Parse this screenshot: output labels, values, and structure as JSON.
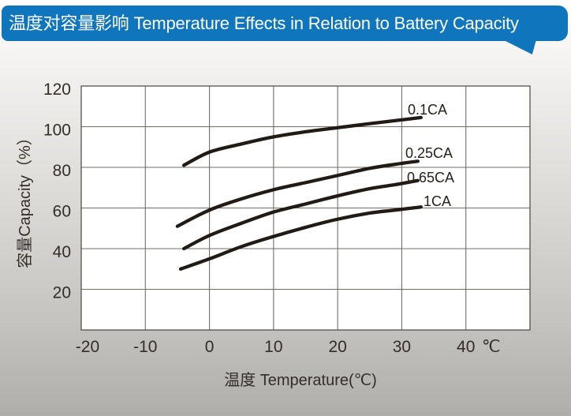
{
  "header": {
    "title": "温度对容量影响 Temperature Effects in Relation to Battery Capacity",
    "bg_color": "#0f76bd",
    "text_color": "#ffffff"
  },
  "chart_data": {
    "type": "line",
    "title": "温度对容量影响 Temperature Effects in Relation to Battery Capacity",
    "xlabel": "温度  Temperature(℃)",
    "ylabel": "容量Capacity（%）",
    "x_unit": "℃",
    "xlim": [
      -20,
      50
    ],
    "ylim": [
      0,
      120
    ],
    "x_ticks": [
      -20,
      -10,
      0,
      10,
      20,
      30,
      40
    ],
    "x_tick_labels": [
      "-20",
      "-10",
      "0",
      "10",
      "20",
      "30",
      "40"
    ],
    "y_ticks": [
      20,
      40,
      60,
      80,
      100,
      120
    ],
    "y_tick_labels": [
      "20",
      "40",
      "60",
      "80",
      "100",
      "120"
    ],
    "grid": true,
    "legend_position": "inline labels at line ends",
    "plot_bg": "#ffffff",
    "grid_color": "#736d67",
    "border_color": "#57524d",
    "line_color": "#221a14",
    "series": [
      {
        "name": "0.1CA",
        "points": [
          [
            -4,
            81
          ],
          [
            0,
            87.5
          ],
          [
            5,
            91.5
          ],
          [
            10,
            95
          ],
          [
            15,
            97.5
          ],
          [
            20,
            99.5
          ],
          [
            25,
            101.5
          ],
          [
            29,
            103
          ],
          [
            33,
            104.5
          ]
        ]
      },
      {
        "name": "0.25CA",
        "points": [
          [
            -5,
            51
          ],
          [
            0,
            59
          ],
          [
            5,
            64.5
          ],
          [
            10,
            69
          ],
          [
            15,
            72.5
          ],
          [
            20,
            76
          ],
          [
            25,
            79.5
          ],
          [
            29,
            81.5
          ],
          [
            32.5,
            83
          ]
        ]
      },
      {
        "name": "0.65CA",
        "points": [
          [
            -4,
            40
          ],
          [
            0,
            46.5
          ],
          [
            5,
            52.5
          ],
          [
            10,
            58
          ],
          [
            15,
            62
          ],
          [
            20,
            66
          ],
          [
            25,
            69.5
          ],
          [
            29,
            71.5
          ],
          [
            32.5,
            73.5
          ]
        ]
      },
      {
        "name": "1CA",
        "points": [
          [
            -4.5,
            30
          ],
          [
            0,
            35
          ],
          [
            5,
            41
          ],
          [
            10,
            46
          ],
          [
            15,
            50.5
          ],
          [
            20,
            54.5
          ],
          [
            25,
            57.5
          ],
          [
            29,
            59
          ],
          [
            33,
            60.5
          ]
        ]
      }
    ]
  }
}
